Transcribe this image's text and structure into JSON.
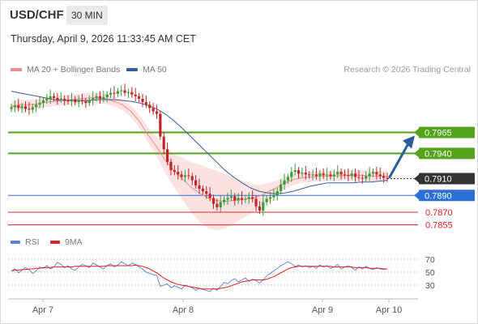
{
  "header": {
    "symbol": "USD/CHF",
    "timeframe": "30 MIN",
    "datetime": "Thursday, April 9, 2026 11:33:45 AM CET",
    "credit": "Research © 2026 Trading Central"
  },
  "legend": {
    "ma20": {
      "label": "MA 20 + Bollinger Bands",
      "color": "#f08c8c"
    },
    "ma50": {
      "label": "MA 50",
      "color": "#3a5d9c"
    },
    "rsi": {
      "label": "RSI",
      "color": "#5b7fd6"
    },
    "ma9": {
      "label": "9MA",
      "color": "#e02020"
    }
  },
  "chart_data": [
    {
      "type": "candlestick",
      "x_ticks": [
        "Apr 7",
        "Apr 8",
        "Apr 9",
        "Apr 10"
      ],
      "ylim": [
        0.7845,
        0.803
      ],
      "current_price": 0.791,
      "levels": [
        {
          "label": "0.7965",
          "value": 0.7965,
          "kind": "resistance",
          "color": "#55a31a"
        },
        {
          "label": "0.7940",
          "value": 0.794,
          "kind": "resistance",
          "color": "#55a31a"
        },
        {
          "label": "0.7910",
          "value": 0.791,
          "kind": "last",
          "color": "#333333"
        },
        {
          "label": "0.7890",
          "value": 0.789,
          "kind": "pivot",
          "color": "#2e6fd6"
        },
        {
          "label": "0.7870",
          "value": 0.787,
          "kind": "support",
          "color": "#e02020"
        },
        {
          "label": "0.7855",
          "value": 0.7855,
          "kind": "support",
          "color": "#e02020"
        }
      ],
      "closes": [
        0.7995,
        0.7997,
        0.7994,
        0.7996,
        0.7993,
        0.7992,
        0.7995,
        0.7998,
        0.8,
        0.8003,
        0.8005,
        0.8008,
        0.8006,
        0.8004,
        0.8005,
        0.8003,
        0.8002,
        0.8004,
        0.8001,
        0.8003,
        0.8002,
        0.8,
        0.8003,
        0.8006,
        0.8008,
        0.8005,
        0.8007,
        0.801,
        0.8012,
        0.8011,
        0.8014,
        0.8015,
        0.8012,
        0.8013,
        0.801,
        0.8008,
        0.8005,
        0.8001,
        0.7998,
        0.7994,
        0.799,
        0.7987,
        0.796,
        0.7945,
        0.793,
        0.792,
        0.7918,
        0.7915,
        0.7912,
        0.7914,
        0.7913,
        0.7908,
        0.7902,
        0.7898,
        0.7895,
        0.7892,
        0.7887,
        0.788,
        0.7876,
        0.7882,
        0.7885,
        0.7887,
        0.7889,
        0.7884,
        0.7887,
        0.7885,
        0.7886,
        0.7888,
        0.7886,
        0.7877,
        0.7872,
        0.7882,
        0.7886,
        0.7888,
        0.789,
        0.7895,
        0.7903,
        0.7908,
        0.7912,
        0.7918,
        0.792,
        0.7916,
        0.7917,
        0.7915,
        0.7914,
        0.7915,
        0.7913,
        0.7916,
        0.7914,
        0.7915,
        0.7913,
        0.7915,
        0.7918,
        0.7915,
        0.7914,
        0.7913,
        0.7916,
        0.7912,
        0.7911,
        0.791,
        0.7913,
        0.7916,
        0.7918,
        0.7915,
        0.7913,
        0.7911,
        0.791
      ],
      "series": [
        {
          "name": "MA 20 + Bollinger Bands",
          "values": [
            0.7996,
            0.7998,
            0.7998,
            0.7999,
            0.8001,
            0.8002,
            0.8003,
            0.8004,
            0.8005,
            0.8006,
            0.8006,
            0.8005,
            0.8002,
            0.7998,
            0.799,
            0.7978,
            0.7962,
            0.7948,
            0.7932,
            0.792,
            0.791,
            0.79,
            0.7893,
            0.7887,
            0.7884,
            0.7883,
            0.7884,
            0.7885,
            0.7886,
            0.7889,
            0.7894,
            0.7899,
            0.7905,
            0.7909,
            0.7911,
            0.7912,
            0.7913,
            0.7913,
            0.7913,
            0.7914,
            0.7914,
            0.7914,
            0.7913,
            0.7913,
            0.7913
          ]
        },
        {
          "name": "MA 50",
          "values": [
            0.8014,
            0.8012,
            0.801,
            0.8008,
            0.8006,
            0.8004,
            0.8003,
            0.8003,
            0.8003,
            0.8003,
            0.8004,
            0.8004,
            0.8004,
            0.8003,
            0.8002,
            0.8,
            0.7997,
            0.7993,
            0.7987,
            0.7979,
            0.797,
            0.796,
            0.795,
            0.794,
            0.793,
            0.792,
            0.7912,
            0.7905,
            0.7899,
            0.7895,
            0.7893,
            0.7892,
            0.7893,
            0.7895,
            0.7898,
            0.7901,
            0.7903,
            0.7905,
            0.7905,
            0.7905,
            0.7905,
            0.7906,
            0.7906,
            0.7907,
            0.7908
          ]
        }
      ]
    },
    {
      "type": "line",
      "title": "RSI",
      "y_ticks": [
        30,
        50,
        70
      ],
      "ylim": [
        10,
        80
      ],
      "series": [
        {
          "name": "RSI",
          "values": [
            52,
            55,
            49,
            53,
            57,
            54,
            48,
            52,
            58,
            56,
            60,
            55,
            58,
            65,
            62,
            57,
            60,
            55,
            53,
            58,
            62,
            60,
            57,
            64,
            61,
            58,
            55,
            60,
            63,
            58,
            61,
            66,
            63,
            60,
            64,
            62,
            58,
            55,
            50,
            48,
            46,
            45,
            28,
            30,
            32,
            26,
            29,
            27,
            24,
            30,
            28,
            26,
            22,
            25,
            23,
            22,
            20,
            25,
            22,
            28,
            34,
            32,
            37,
            40,
            35,
            38,
            41,
            36,
            39,
            37,
            33,
            38,
            44,
            48,
            52,
            56,
            60,
            63,
            66,
            63,
            59,
            61,
            58,
            60,
            57,
            59,
            56,
            61,
            58,
            60,
            56,
            58,
            62,
            55,
            58,
            60,
            57,
            53,
            58,
            55,
            59,
            56,
            54,
            57,
            55,
            54,
            55
          ]
        },
        {
          "name": "9MA",
          "values": [
            52,
            53,
            53,
            54,
            54,
            55,
            55,
            56,
            56,
            57,
            57,
            57,
            58,
            58,
            58,
            58,
            58,
            58,
            59,
            59,
            59,
            59,
            59,
            59,
            59,
            59,
            59,
            60,
            60,
            60,
            60,
            60,
            60,
            60,
            60,
            61,
            60,
            59,
            57,
            55,
            52,
            49,
            45,
            41,
            38,
            35,
            33,
            31,
            30,
            29,
            28,
            27,
            26,
            25,
            24,
            24,
            24,
            24,
            24,
            25,
            26,
            27,
            29,
            31,
            33,
            35,
            36,
            37,
            38,
            38,
            38,
            38,
            39,
            41,
            43,
            46,
            49,
            52,
            55,
            57,
            58,
            59,
            59,
            59,
            59,
            59,
            59,
            59,
            59,
            59,
            59,
            58,
            58,
            58,
            58,
            58,
            58,
            57,
            57,
            57,
            57,
            56,
            56,
            56,
            56,
            55,
            55
          ]
        }
      ]
    }
  ]
}
